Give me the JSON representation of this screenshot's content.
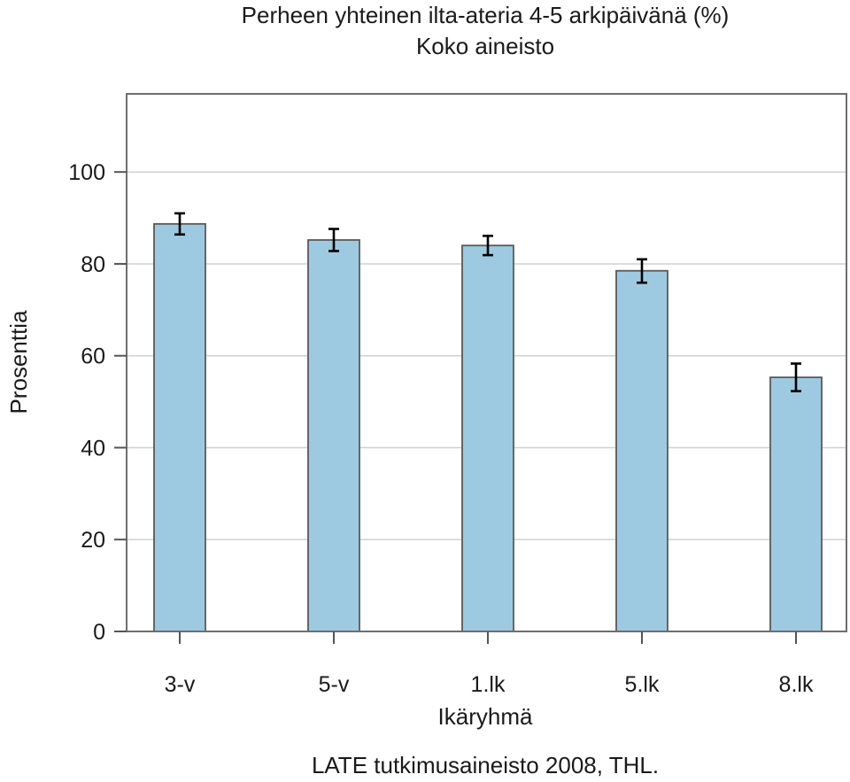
{
  "chart_data": {
    "type": "bar",
    "title": "Perheen yhteinen ilta-ateria 4-5 arkipäivänä (%)",
    "subtitle": "Koko aineisto",
    "xlabel": "Ikäryhmä",
    "ylabel": "Prosenttia",
    "source": "LATE tutkimusaineisto 2008, THL.",
    "categories": [
      "3-v",
      "5-v",
      "1.lk",
      "5.lk",
      "8.lk"
    ],
    "values": [
      88.7,
      85.2,
      84.0,
      78.5,
      55.3
    ],
    "error_low": [
      86.4,
      82.8,
      81.9,
      75.9,
      52.3
    ],
    "error_high": [
      91.0,
      87.6,
      86.1,
      81.0,
      58.3
    ],
    "yticks": [
      0,
      20,
      40,
      60,
      80,
      100
    ],
    "ylim": [
      0,
      117
    ],
    "grid": true,
    "bar_color": "#9ecae1",
    "bar_edge_color": "#595959",
    "grid_color": "#d0d0d0"
  }
}
